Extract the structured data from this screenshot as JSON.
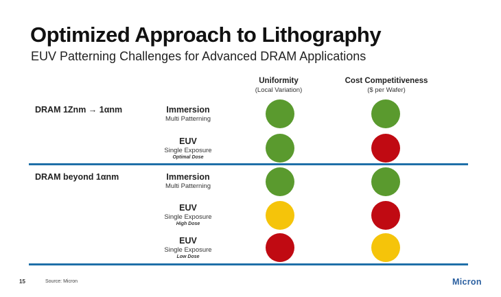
{
  "slide": {
    "title": "Optimized Approach to Lithography",
    "subtitle": "EUV Patterning Challenges for Advanced DRAM Applications"
  },
  "columns": [
    {
      "title": "Uniformity",
      "sub": "(Local Variation)"
    },
    {
      "title": "Cost Competitiveness",
      "sub": "($ per Wafer)"
    }
  ],
  "groups": [
    {
      "label": "DRAM 1Znm → 1αnm"
    },
    {
      "label": "DRAM beyond 1αnm"
    }
  ],
  "rows": [
    {
      "method": "Immersion",
      "detail": "Multi Patterning",
      "note": "",
      "uniformity": "green",
      "cost": "green"
    },
    {
      "method": "EUV",
      "detail": "Single Exposure",
      "note": "Optimal Dose",
      "uniformity": "green",
      "cost": "red"
    },
    {
      "method": "Immersion",
      "detail": "Multi Patterning",
      "note": "",
      "uniformity": "green",
      "cost": "green"
    },
    {
      "method": "EUV",
      "detail": "Single Exposure",
      "note": "High Dose",
      "uniformity": "yellow",
      "cost": "red"
    },
    {
      "method": "EUV",
      "detail": "Single Exposure",
      "note": "Low Dose",
      "uniformity": "red",
      "cost": "yellow"
    }
  ],
  "colors": {
    "green": "#5a9a2e",
    "red": "#c00a12",
    "yellow": "#f5c40a",
    "divider": "#1f6fa8"
  },
  "footer": {
    "page_number": "15",
    "source": "Source: Micron",
    "logo_text": "Micron"
  }
}
